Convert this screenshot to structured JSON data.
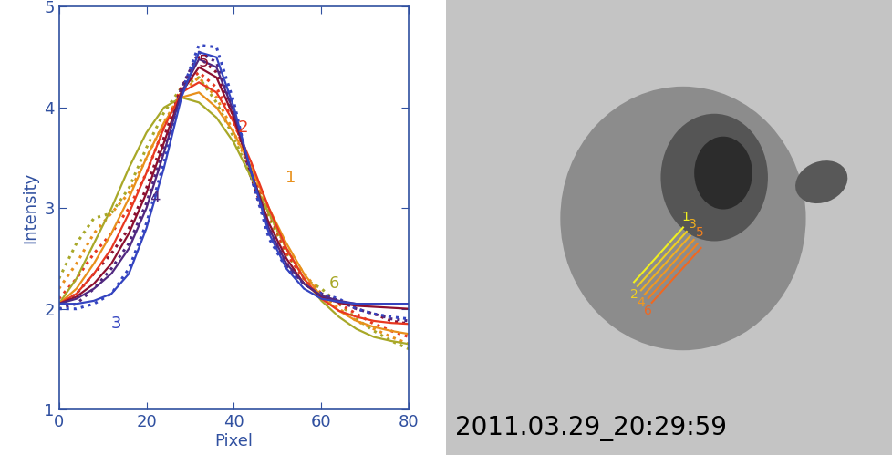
{
  "chart_data": {
    "type": "line",
    "x_label": "Pixel",
    "y_label": "Intensity",
    "x": [
      0,
      4,
      8,
      12,
      16,
      20,
      24,
      28,
      32,
      36,
      40,
      44,
      48,
      52,
      56,
      60,
      64,
      68,
      72,
      76,
      80
    ],
    "xlim": [
      0,
      80
    ],
    "xticks": [
      0,
      20,
      40,
      60,
      80
    ],
    "ylim": [
      1,
      5
    ],
    "yticks": [
      1,
      2,
      3,
      4,
      5
    ],
    "series": [
      {
        "name": "6",
        "color": "#a8a828",
        "label_x": 63,
        "label_y": 2.25,
        "values": [
          2.05,
          2.3,
          2.65,
          3.0,
          3.4,
          3.75,
          4.0,
          4.1,
          4.05,
          3.9,
          3.65,
          3.3,
          2.95,
          2.6,
          2.3,
          2.08,
          1.92,
          1.8,
          1.72,
          1.68,
          1.65
        ],
        "observed": [
          2.3,
          2.65,
          2.9,
          2.95,
          3.2,
          3.6,
          3.95,
          4.2,
          4.3,
          4.05,
          3.7,
          3.3,
          2.9,
          2.55,
          2.3,
          2.2,
          2.05,
          1.9,
          1.78,
          1.68,
          1.6
        ]
      },
      {
        "name": "1",
        "color": "#e8901c",
        "label_x": 53,
        "label_y": 3.3,
        "values": [
          2.05,
          2.2,
          2.45,
          2.75,
          3.1,
          3.5,
          3.85,
          4.1,
          4.15,
          4.0,
          3.75,
          3.4,
          3.0,
          2.65,
          2.35,
          2.12,
          1.98,
          1.88,
          1.82,
          1.78,
          1.75
        ],
        "observed": [
          2.2,
          2.45,
          2.75,
          2.95,
          3.15,
          3.5,
          3.85,
          4.15,
          4.3,
          4.1,
          3.75,
          3.35,
          2.95,
          2.6,
          2.35,
          2.15,
          2.0,
          1.88,
          1.8,
          1.72,
          1.65
        ]
      },
      {
        "name": "2",
        "color": "#e83820",
        "label_x": 42,
        "label_y": 3.8,
        "values": [
          2.05,
          2.15,
          2.35,
          2.6,
          2.95,
          3.35,
          3.8,
          4.15,
          4.25,
          4.15,
          3.85,
          3.45,
          3.0,
          2.6,
          2.3,
          2.1,
          1.98,
          1.92,
          1.88,
          1.86,
          1.85
        ],
        "observed": [
          2.1,
          2.3,
          2.55,
          2.75,
          3.0,
          3.35,
          3.8,
          4.2,
          4.35,
          4.2,
          3.85,
          3.4,
          2.95,
          2.55,
          2.3,
          2.15,
          2.05,
          1.95,
          1.85,
          1.78,
          1.72
        ]
      },
      {
        "name": "5",
        "color": "#8c1030",
        "label_x": 33,
        "label_y": 4.45,
        "values": [
          2.05,
          2.12,
          2.25,
          2.45,
          2.75,
          3.15,
          3.65,
          4.15,
          4.4,
          4.3,
          3.9,
          3.35,
          2.85,
          2.5,
          2.25,
          2.12,
          2.06,
          2.03,
          2.02,
          2.01,
          2.0
        ],
        "observed": [
          2.05,
          2.15,
          2.35,
          2.55,
          2.8,
          3.2,
          3.7,
          4.2,
          4.5,
          4.35,
          3.9,
          3.3,
          2.8,
          2.45,
          2.25,
          2.15,
          2.08,
          2.0,
          1.95,
          1.88,
          1.85
        ]
      },
      {
        "name": "4",
        "color": "#502880",
        "label_x": 22,
        "label_y": 3.1,
        "values": [
          2.05,
          2.1,
          2.2,
          2.35,
          2.6,
          3.0,
          3.55,
          4.15,
          4.48,
          4.4,
          3.95,
          3.35,
          2.8,
          2.45,
          2.25,
          2.13,
          2.08,
          2.05,
          2.05,
          2.05,
          2.05
        ],
        "observed": [
          2.0,
          2.05,
          2.2,
          2.4,
          2.65,
          3.05,
          3.6,
          4.2,
          4.55,
          4.45,
          3.95,
          3.3,
          2.75,
          2.42,
          2.25,
          2.15,
          2.08,
          2.0,
          1.95,
          1.9,
          1.88
        ]
      },
      {
        "name": "3",
        "color": "#3444c0",
        "label_x": 13,
        "label_y": 1.85,
        "values": [
          2.05,
          2.05,
          2.08,
          2.15,
          2.35,
          2.8,
          3.4,
          4.1,
          4.55,
          4.5,
          4.0,
          3.35,
          2.75,
          2.4,
          2.2,
          2.1,
          2.07,
          2.05,
          2.05,
          2.05,
          2.05
        ],
        "observed": [
          2.0,
          2.0,
          2.05,
          2.15,
          2.4,
          2.85,
          3.45,
          4.15,
          4.62,
          4.6,
          4.05,
          3.3,
          2.7,
          2.4,
          2.25,
          2.15,
          2.1,
          2.0,
          1.95,
          1.92,
          1.9
        ]
      }
    ]
  },
  "image": {
    "timestamp": "2011.03.29_20:29:59",
    "slit_labels": [
      "1",
      "2",
      "3",
      "4",
      "5",
      "6"
    ]
  }
}
